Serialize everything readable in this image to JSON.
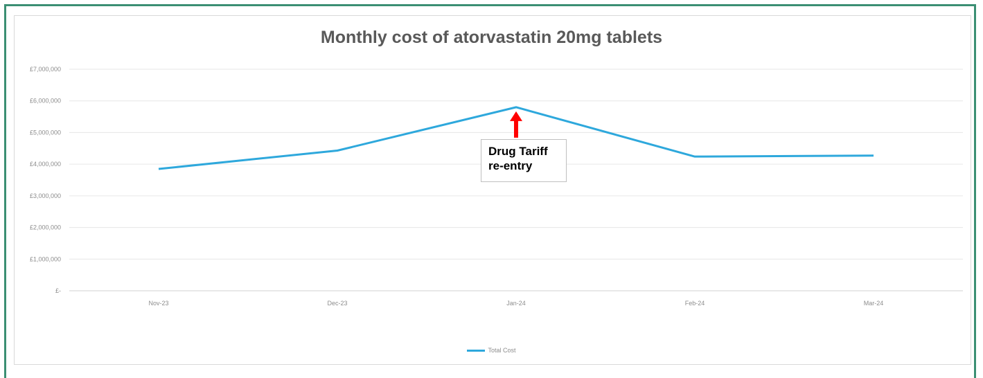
{
  "chart_data": {
    "type": "line",
    "title": "Monthly cost of atorvastatin 20mg tablets",
    "categories": [
      "Nov-23",
      "Dec-23",
      "Jan-24",
      "Feb-24",
      "Mar-24"
    ],
    "series": [
      {
        "name": "Total Cost",
        "color": "#2ea8dc",
        "values": [
          3850000,
          4430000,
          5800000,
          4240000,
          4270000
        ]
      }
    ],
    "yticks": [
      "£-",
      "£1,000,000",
      "£2,000,000",
      "£3,000,000",
      "£4,000,000",
      "£5,000,000",
      "£6,000,000",
      "£7,000,000"
    ],
    "ylim": [
      0,
      7000000
    ],
    "grid": true,
    "legend": "bottom",
    "annotation": {
      "lines": [
        "Drug Tariff",
        "re-entry"
      ],
      "category": "Jan-24",
      "arrow_color": "#ff0000"
    }
  }
}
